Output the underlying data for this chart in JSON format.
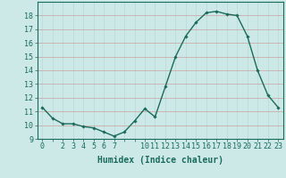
{
  "x": [
    0,
    1,
    2,
    3,
    4,
    5,
    6,
    7,
    8,
    9,
    10,
    11,
    12,
    13,
    14,
    15,
    16,
    17,
    18,
    19,
    20,
    21,
    22,
    23
  ],
  "y": [
    11.3,
    10.5,
    10.1,
    10.1,
    9.9,
    9.8,
    9.5,
    9.2,
    9.5,
    10.3,
    11.2,
    10.6,
    12.8,
    15.0,
    16.5,
    17.5,
    18.2,
    18.3,
    18.1,
    18.0,
    16.5,
    14.0,
    12.2,
    11.3
  ],
  "line_color": "#1a6b5a",
  "marker": "D",
  "marker_size": 1.8,
  "bg_color": "#cce9e7",
  "grid_color_minor": "#b8d8d6",
  "grid_color_major": "#c8a0a0",
  "xlabel": "Humidex (Indice chaleur)",
  "ylim": [
    9,
    19
  ],
  "xlim": [
    -0.5,
    23.5
  ],
  "yticks": [
    9,
    10,
    11,
    12,
    13,
    14,
    15,
    16,
    17,
    18
  ],
  "xticks_major": [
    0,
    2,
    3,
    4,
    5,
    6,
    7,
    10,
    11,
    12,
    13,
    14,
    15,
    16,
    17,
    18,
    19,
    20,
    21,
    22,
    23
  ],
  "xticks_all": [
    0,
    1,
    2,
    3,
    4,
    5,
    6,
    7,
    8,
    9,
    10,
    11,
    12,
    13,
    14,
    15,
    16,
    17,
    18,
    19,
    20,
    21,
    22,
    23
  ],
  "xlabel_fontsize": 7,
  "tick_fontsize": 6,
  "line_width": 1.0
}
